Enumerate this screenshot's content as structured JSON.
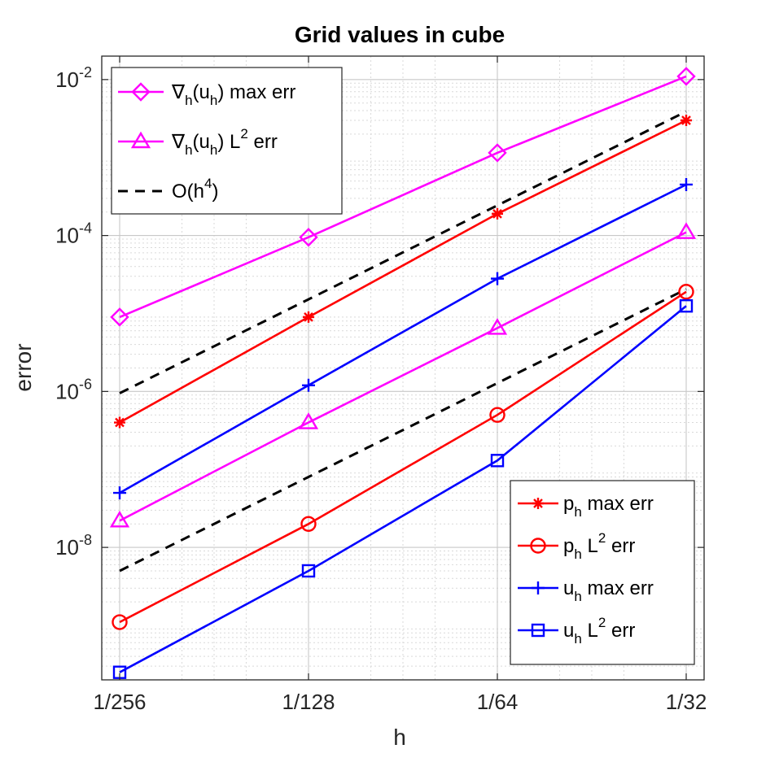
{
  "chart_data": {
    "type": "line",
    "title": "Grid values in cube",
    "xlabel": "h",
    "ylabel": "error",
    "xscale": "log",
    "yscale": "log",
    "x": [
      0.00390625,
      0.0078125,
      0.015625,
      0.03125
    ],
    "xtick_labels": [
      "1/256",
      "1/128",
      "1/64",
      "1/32"
    ],
    "ytick_exponents": [
      "-8",
      "-6",
      "-4",
      "-2"
    ],
    "ytick_base": "10",
    "ylim": [
      2e-10,
      0.02
    ],
    "grid": true,
    "series": [
      {
        "key": "grad_max",
        "name": "∇h(uh) max err",
        "color": "#ff00ff",
        "marker": "diamond",
        "values": [
          9e-06,
          9.5e-05,
          0.00115,
          0.011
        ]
      },
      {
        "key": "grad_l2",
        "name": "∇h(uh) L2 err",
        "color": "#ff00ff",
        "marker": "triangle",
        "values": [
          2.2e-08,
          4e-07,
          6.5e-06,
          0.00011
        ]
      },
      {
        "key": "o_h4",
        "name": "O(h4)",
        "color": "#000000",
        "marker": "none",
        "dashed": true,
        "values": [
          9.5e-07,
          1.52e-05,
          0.000243,
          0.0039
        ]
      },
      {
        "key": "o_h4_low",
        "name": "",
        "color": "#000000",
        "marker": "none",
        "dashed": true,
        "values": [
          5e-09,
          8e-08,
          1.28e-06,
          2.05e-05
        ]
      },
      {
        "key": "p_max",
        "name": "ph max err",
        "color": "#ff0000",
        "marker": "star",
        "values": [
          4e-07,
          9e-06,
          0.00019,
          0.003
        ]
      },
      {
        "key": "p_l2",
        "name": "ph L2 err",
        "color": "#ff0000",
        "marker": "circle",
        "values": [
          1.1e-09,
          2e-08,
          5e-07,
          1.9e-05
        ]
      },
      {
        "key": "u_max",
        "name": "uh max err",
        "color": "#0000ff",
        "marker": "plus",
        "values": [
          5e-08,
          1.2e-06,
          2.8e-05,
          0.00045
        ]
      },
      {
        "key": "u_l2",
        "name": "uh L2 err",
        "color": "#0000ff",
        "marker": "square",
        "values": [
          2.5e-10,
          5e-09,
          1.3e-07,
          1.25e-05
        ]
      }
    ]
  },
  "legend_top": {
    "position": "top-left",
    "entries": [
      {
        "series": "grad_max",
        "base": "∇",
        "sub1": "h",
        "mid": "(u",
        "sub2": "h",
        "tail": ") max err"
      },
      {
        "series": "grad_l2",
        "base": "∇",
        "sub1": "h",
        "mid": "(u",
        "sub2": "h",
        "tail": ") L",
        "sup": "2",
        "tail2": " err"
      },
      {
        "series": "o_h4",
        "base": "O(h",
        "sup": "4",
        "tail": ")"
      }
    ]
  },
  "legend_bottom": {
    "position": "bottom-right",
    "entries": [
      {
        "series": "p_max",
        "base": "p",
        "sub": "h",
        "tail": " max err"
      },
      {
        "series": "p_l2",
        "base": "p",
        "sub": "h",
        "tail": " L",
        "sup": "2",
        "tail2": " err"
      },
      {
        "series": "u_max",
        "base": "u",
        "sub": "h",
        "tail": " max err"
      },
      {
        "series": "u_l2",
        "base": "u",
        "sub": "h",
        "tail": " L",
        "sup": "2",
        "tail2": " err"
      }
    ]
  }
}
